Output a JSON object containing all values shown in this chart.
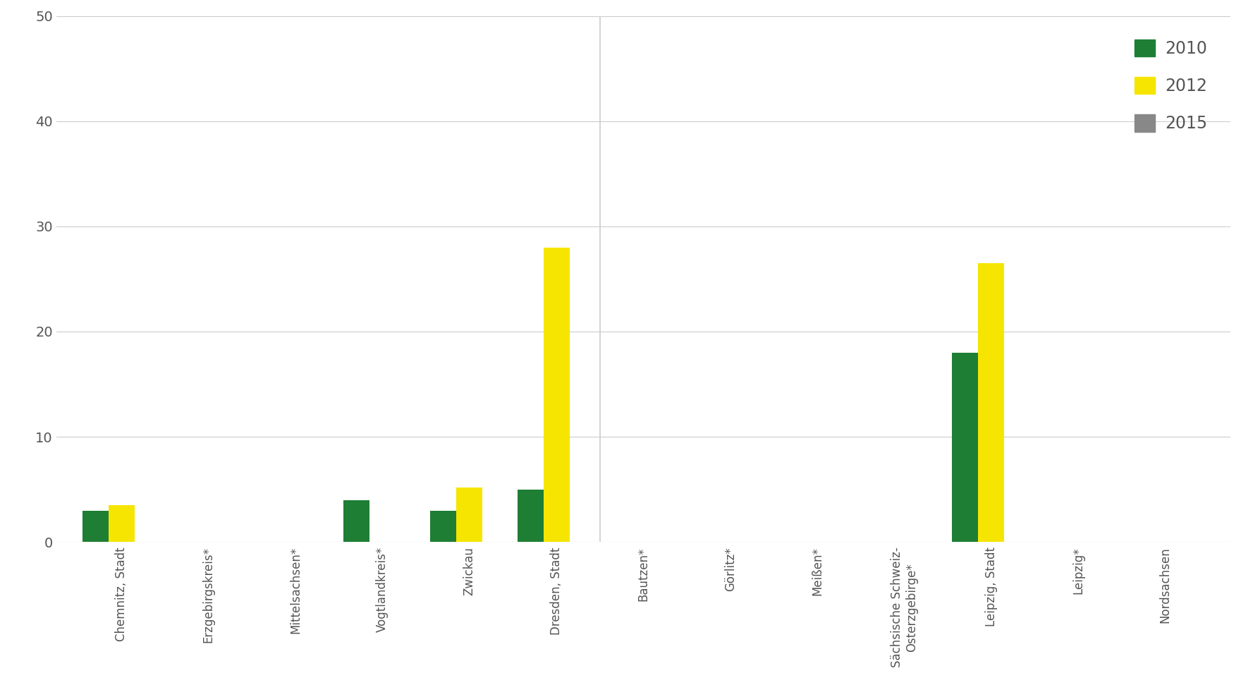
{
  "categories": [
    "Chemnitz, Stadt",
    "Erzgebirgskreis*",
    "Mittelsachsen*",
    "Vogtlandkreis*",
    "Zwickau",
    "Dresden, Stadt",
    "Bautzen*",
    "Görlitz*",
    "Meißen*",
    "Sächsische Schweiz-\nOsterzgebirge*",
    "Leipzig, Stadt",
    "Leipzig*",
    "Nordsachsen"
  ],
  "values_2010": [
    3.0,
    0,
    0,
    4.0,
    3.0,
    5.0,
    0,
    0,
    0,
    0,
    18.0,
    0,
    0
  ],
  "values_2012": [
    3.5,
    0,
    0,
    0,
    5.2,
    28.0,
    0,
    0,
    0,
    0,
    26.5,
    0,
    0
  ],
  "values_2015": [
    0,
    0,
    0,
    0,
    0,
    0,
    0,
    0,
    0,
    0,
    0,
    0,
    0
  ],
  "color_2010": "#1e7e34",
  "color_2012": "#f5e500",
  "color_2015": "#888888",
  "ylim": [
    0,
    50
  ],
  "yticks": [
    0,
    10,
    20,
    30,
    40,
    50
  ],
  "background_color": "#ffffff",
  "plot_bg_color": "#f5f5f0",
  "grid_color": "#cccccc",
  "text_color": "#555555",
  "bar_width": 0.3,
  "legend_labels": [
    "2010",
    "2012",
    "2015"
  ],
  "divider_after_index": 5
}
